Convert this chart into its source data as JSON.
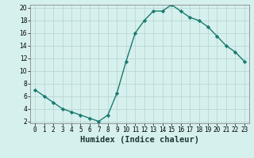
{
  "x": [
    0,
    1,
    2,
    3,
    4,
    5,
    6,
    7,
    8,
    9,
    10,
    11,
    12,
    13,
    14,
    15,
    16,
    17,
    18,
    19,
    20,
    21,
    22,
    23
  ],
  "y": [
    7,
    6,
    5,
    4,
    3.5,
    3,
    2.5,
    2,
    3,
    6.5,
    11.5,
    16,
    18,
    19.5,
    19.5,
    20.5,
    19.5,
    18.5,
    18,
    17,
    15.5,
    14,
    13,
    11.5
  ],
  "line_color": "#1a7a6e",
  "marker": "D",
  "marker_size": 2.2,
  "bg_color": "#d6f0ee",
  "grid_color": "#b8d8d4",
  "xlabel": "Humidex (Indice chaleur)",
  "ylim": [
    2,
    20
  ],
  "xlim": [
    -0.5,
    23.5
  ],
  "yticks": [
    2,
    4,
    6,
    8,
    10,
    12,
    14,
    16,
    18,
    20
  ],
  "xticks": [
    0,
    1,
    2,
    3,
    4,
    5,
    6,
    7,
    8,
    9,
    10,
    11,
    12,
    13,
    14,
    15,
    16,
    17,
    18,
    19,
    20,
    21,
    22,
    23
  ],
  "tick_fontsize": 5.5,
  "xlabel_fontsize": 7.5,
  "linewidth": 1.0
}
